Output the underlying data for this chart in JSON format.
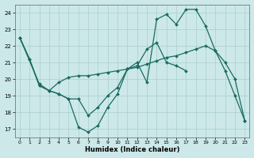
{
  "xlabel": "Humidex (Indice chaleur)",
  "background_color": "#cce8e8",
  "grid_color": "#aacfcf",
  "line_color": "#1a6b60",
  "xlim": [
    -0.5,
    23.5
  ],
  "ylim": [
    16.5,
    24.5
  ],
  "yticks": [
    17,
    18,
    19,
    20,
    21,
    22,
    23,
    24
  ],
  "xticks": [
    0,
    1,
    2,
    3,
    4,
    5,
    6,
    7,
    8,
    9,
    10,
    11,
    12,
    13,
    14,
    15,
    16,
    17,
    18,
    19,
    20,
    21,
    22,
    23
  ],
  "line1_x": [
    0,
    1,
    2,
    3,
    4,
    5,
    6,
    7,
    8,
    9,
    10,
    11,
    12,
    13,
    14,
    15,
    16,
    17,
    18,
    19,
    20,
    21,
    22,
    23
  ],
  "line1_y": [
    22.5,
    21.2,
    19.6,
    19.3,
    19.1,
    18.8,
    17.1,
    16.8,
    17.2,
    18.3,
    19.1,
    20.6,
    20.8,
    21.8,
    22.2,
    21.0,
    20.8,
    20.5,
    null,
    null,
    null,
    null,
    null,
    null
  ],
  "line2_x": [
    0,
    2,
    3,
    4,
    5,
    6,
    7,
    8,
    9,
    10,
    11,
    12,
    13,
    14,
    15,
    16,
    17,
    18,
    19,
    20,
    21,
    22,
    23
  ],
  "line2_y": [
    22.5,
    19.7,
    19.3,
    19.1,
    18.8,
    18.8,
    17.8,
    18.3,
    19.0,
    19.5,
    20.6,
    21.0,
    19.8,
    23.6,
    23.9,
    23.3,
    24.2,
    24.2,
    23.2,
    21.7,
    20.5,
    19.0,
    17.5
  ],
  "line3_x": [
    0,
    1,
    2,
    3,
    4,
    5,
    6,
    7,
    8,
    9,
    10,
    11,
    12,
    13,
    14,
    15,
    16,
    17,
    18,
    19,
    20,
    21,
    22,
    23
  ],
  "line3_y": [
    22.5,
    21.2,
    19.6,
    19.3,
    19.8,
    20.1,
    20.2,
    20.2,
    20.3,
    20.4,
    20.5,
    20.6,
    20.7,
    20.9,
    21.1,
    21.3,
    21.4,
    21.6,
    21.8,
    22.0,
    21.7,
    21.0,
    20.0,
    17.5
  ]
}
